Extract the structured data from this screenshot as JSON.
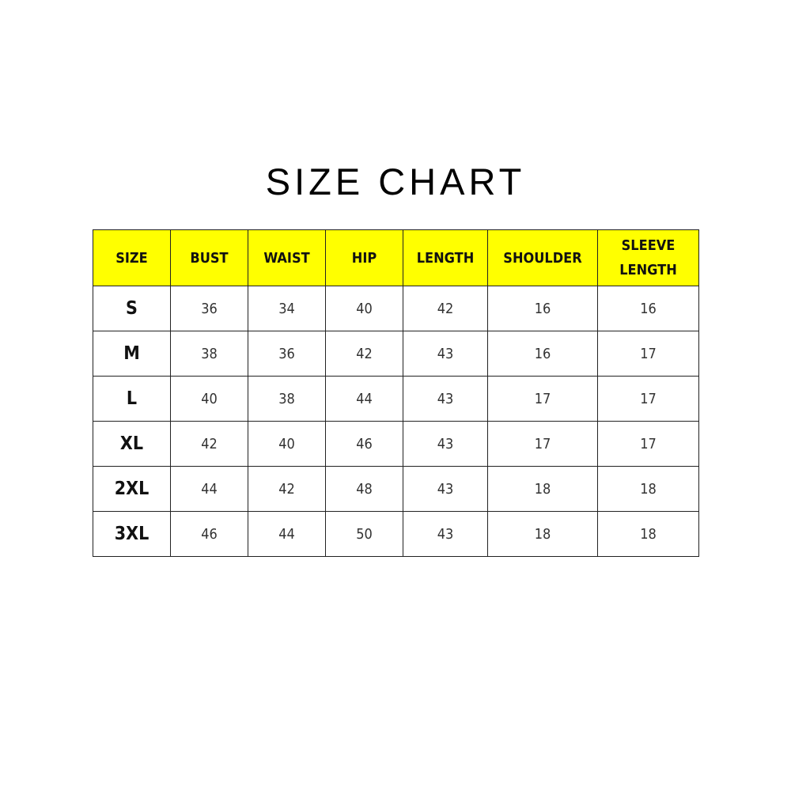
{
  "title": "SIZE CHART",
  "colors": {
    "header_bg": "#ffff00",
    "border": "#222222"
  },
  "table": {
    "headers": [
      "SIZE",
      "BUST",
      "WAIST",
      "HIP",
      "LENGTH",
      "SHOULDER",
      "SLEEVE LENGTH"
    ],
    "rows": [
      [
        "S",
        "36",
        "34",
        "40",
        "42",
        "16",
        "16"
      ],
      [
        "M",
        "38",
        "36",
        "42",
        "43",
        "16",
        "17"
      ],
      [
        "L",
        "40",
        "38",
        "44",
        "43",
        "17",
        "17"
      ],
      [
        "XL",
        "42",
        "40",
        "46",
        "43",
        "17",
        "17"
      ],
      [
        "2XL",
        "44",
        "42",
        "48",
        "43",
        "18",
        "18"
      ],
      [
        "3XL",
        "46",
        "44",
        "50",
        "43",
        "18",
        "18"
      ]
    ]
  }
}
